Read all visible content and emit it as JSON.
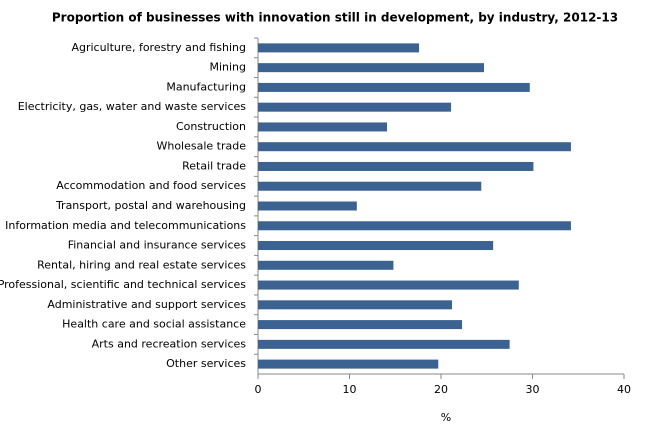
{
  "chart_data": {
    "type": "bar",
    "orientation": "horizontal",
    "title": "Proportion of businesses with innovation still in development, by industry, 2012-13",
    "x_label": "%",
    "categories": [
      "Agriculture, forestry and fishing",
      "Mining",
      "Manufacturing",
      "Electricity, gas, water and waste services",
      "Construction",
      "Wholesale trade",
      "Retail trade",
      "Accommodation and food services",
      "Transport, postal and warehousing",
      "Information media and telecommunications",
      "Financial and insurance services",
      "Rental, hiring and real estate services",
      "Professional, scientific and technical services",
      "Administrative and support services",
      "Health care and social assistance",
      "Arts and recreation services",
      "Other services"
    ],
    "values": [
      17.6,
      24.7,
      29.7,
      21.1,
      14.1,
      34.2,
      30.1,
      24.4,
      10.8,
      34.2,
      25.7,
      14.8,
      28.5,
      21.2,
      22.3,
      27.5,
      19.7
    ],
    "color": "#3b6290",
    "xlim": [
      0,
      40
    ],
    "xticks": [
      0,
      10,
      20,
      30,
      40
    ]
  }
}
